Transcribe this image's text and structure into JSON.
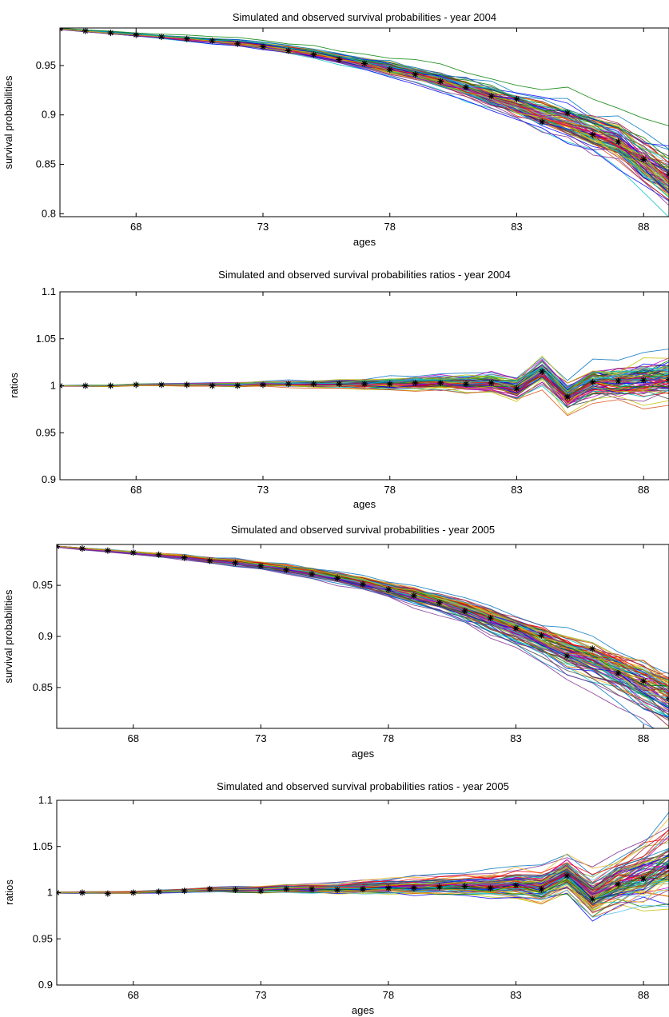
{
  "chart_data": [
    {
      "type": "line",
      "title": "Simulated and observed survival probabilities - year 2004",
      "xlabel": "ages",
      "ylabel": "survival probabilities",
      "xlim": [
        65,
        89
      ],
      "ylim": [
        0.797,
        0.988
      ],
      "xticks": [
        68,
        73,
        78,
        83,
        88
      ],
      "yticks": [
        0.8,
        0.85,
        0.9,
        0.95
      ],
      "yticklabels": [
        "0.8",
        "0.85",
        "0.9",
        "0.95"
      ],
      "grid": false,
      "x": [
        65,
        66,
        67,
        68,
        69,
        70,
        71,
        72,
        73,
        74,
        75,
        76,
        77,
        78,
        79,
        80,
        81,
        82,
        83,
        84,
        85,
        86,
        87,
        88,
        89
      ],
      "series": [
        {
          "role": "observed",
          "marker": "*",
          "color": "#000000",
          "values": [
            0.987,
            0.985,
            0.983,
            0.981,
            0.979,
            0.977,
            0.975,
            0.972,
            0.969,
            0.965,
            0.961,
            0.956,
            0.952,
            0.946,
            0.941,
            0.934,
            0.928,
            0.919,
            0.916,
            0.893,
            0.902,
            0.88,
            0.873,
            0.855,
            0.84
          ]
        },
        {
          "role": "simulated_band",
          "count_label": "",
          "center": [
            0.987,
            0.985,
            0.983,
            0.981,
            0.979,
            0.977,
            0.975,
            0.973,
            0.97,
            0.966,
            0.962,
            0.957,
            0.952,
            0.947,
            0.941,
            0.934,
            0.927,
            0.919,
            0.91,
            0.9,
            0.893,
            0.882,
            0.873,
            0.853,
            0.835
          ],
          "spread": [
            0.0005,
            0.0008,
            0.001,
            0.0012,
            0.0015,
            0.002,
            0.0025,
            0.003,
            0.0035,
            0.004,
            0.0045,
            0.005,
            0.006,
            0.007,
            0.008,
            0.009,
            0.01,
            0.012,
            0.014,
            0.016,
            0.018,
            0.02,
            0.022,
            0.026,
            0.03
          ]
        }
      ]
    },
    {
      "type": "line",
      "title": "Simulated and observed survival probabilities ratios - year 2004",
      "xlabel": "ages",
      "ylabel": "ratios",
      "xlim": [
        65,
        89
      ],
      "ylim": [
        0.9,
        1.1
      ],
      "xticks": [
        68,
        73,
        78,
        83,
        88
      ],
      "yticks": [
        0.9,
        0.95,
        1,
        1.05,
        1.1
      ],
      "yticklabels": [
        "0.9",
        "0.95",
        "1",
        "1.05",
        "1.1"
      ],
      "grid": false,
      "x": [
        65,
        66,
        67,
        68,
        69,
        70,
        71,
        72,
        73,
        74,
        75,
        76,
        77,
        78,
        79,
        80,
        81,
        82,
        83,
        84,
        85,
        86,
        87,
        88,
        89
      ],
      "series": [
        {
          "role": "observed",
          "marker": "*",
          "color": "#000000",
          "values": [
            1.0,
            1.0,
            1.0,
            1.001,
            1.001,
            1.001,
            1.0,
            1.0,
            1.001,
            1.002,
            1.002,
            1.002,
            1.002,
            1.002,
            1.003,
            1.003,
            1.002,
            1.003,
            0.997,
            1.015,
            0.988,
            1.004,
            1.005,
            1.006,
            1.007
          ]
        },
        {
          "role": "simulated_band",
          "count_label": "",
          "center": [
            1.0,
            1.0,
            1.0,
            1.001,
            1.001,
            1.001,
            1.001,
            1.001,
            1.002,
            1.002,
            1.002,
            1.002,
            1.002,
            1.002,
            1.003,
            1.003,
            1.002,
            1.003,
            0.997,
            1.015,
            0.988,
            1.003,
            1.003,
            1.005,
            1.006
          ],
          "spread": [
            0.0005,
            0.0008,
            0.001,
            0.001,
            0.0012,
            0.0015,
            0.002,
            0.0025,
            0.003,
            0.0035,
            0.004,
            0.005,
            0.006,
            0.007,
            0.008,
            0.009,
            0.01,
            0.012,
            0.014,
            0.016,
            0.018,
            0.02,
            0.022,
            0.025,
            0.028
          ]
        }
      ]
    },
    {
      "type": "line",
      "title": "Simulated and observed survival probabilities - year 2005",
      "xlabel": "ages",
      "ylabel": "survival probabilities",
      "xlim": [
        65,
        89
      ],
      "ylim": [
        0.81,
        0.99
      ],
      "xticks": [
        68,
        73,
        78,
        83,
        88
      ],
      "yticks": [
        0.85,
        0.9,
        0.95
      ],
      "yticklabels": [
        "0.85",
        "0.9",
        "0.95"
      ],
      "grid": false,
      "x": [
        65,
        66,
        67,
        68,
        69,
        70,
        71,
        72,
        73,
        74,
        75,
        76,
        77,
        78,
        79,
        80,
        81,
        82,
        83,
        84,
        85,
        86,
        87,
        88,
        89
      ],
      "series": [
        {
          "role": "observed",
          "marker": "*",
          "color": "#000000",
          "values": [
            0.988,
            0.986,
            0.984,
            0.982,
            0.98,
            0.977,
            0.974,
            0.972,
            0.969,
            0.965,
            0.961,
            0.957,
            0.951,
            0.946,
            0.94,
            0.933,
            0.925,
            0.918,
            0.908,
            0.901,
            0.881,
            0.888,
            0.864,
            0.856,
            0.839
          ]
        },
        {
          "role": "simulated_band",
          "count_label": "",
          "center": [
            0.988,
            0.986,
            0.984,
            0.982,
            0.98,
            0.978,
            0.975,
            0.973,
            0.97,
            0.967,
            0.963,
            0.958,
            0.953,
            0.947,
            0.941,
            0.934,
            0.926,
            0.917,
            0.907,
            0.897,
            0.886,
            0.876,
            0.866,
            0.853,
            0.84
          ],
          "spread": [
            0.0005,
            0.0008,
            0.001,
            0.0012,
            0.0015,
            0.002,
            0.0025,
            0.003,
            0.0035,
            0.004,
            0.0045,
            0.005,
            0.006,
            0.007,
            0.008,
            0.009,
            0.01,
            0.012,
            0.014,
            0.016,
            0.018,
            0.02,
            0.022,
            0.026,
            0.03
          ]
        }
      ]
    },
    {
      "type": "line",
      "title": "Simulated and observed survival probabilities ratios - year 2005",
      "xlabel": "ages",
      "ylabel": "ratios",
      "xlim": [
        65,
        89
      ],
      "ylim": [
        0.9,
        1.1
      ],
      "xticks": [
        68,
        73,
        78,
        83,
        88
      ],
      "yticks": [
        0.9,
        0.95,
        1,
        1.05,
        1.1
      ],
      "yticklabels": [
        "0.9",
        "0.95",
        "1",
        "1.05",
        "1.1"
      ],
      "grid": false,
      "x": [
        65,
        66,
        67,
        68,
        69,
        70,
        71,
        72,
        73,
        74,
        75,
        76,
        77,
        78,
        79,
        80,
        81,
        82,
        83,
        84,
        85,
        86,
        87,
        88,
        89
      ],
      "series": [
        {
          "role": "observed",
          "marker": "*",
          "color": "#000000",
          "values": [
            1.0,
            1.0,
            0.999,
            1.0,
            1.001,
            1.002,
            1.004,
            1.003,
            1.002,
            1.004,
            1.004,
            1.003,
            1.004,
            1.005,
            1.005,
            1.006,
            1.007,
            1.005,
            1.008,
            1.004,
            1.018,
            0.993,
            1.009,
            1.015,
            1.028
          ]
        },
        {
          "role": "simulated_band",
          "count_label": "",
          "center": [
            1.0,
            1.0,
            1.0,
            1.0,
            1.001,
            1.002,
            1.003,
            1.003,
            1.003,
            1.004,
            1.004,
            1.004,
            1.005,
            1.006,
            1.006,
            1.007,
            1.008,
            1.007,
            1.008,
            1.005,
            1.018,
            0.995,
            1.01,
            1.018,
            1.03
          ],
          "spread": [
            0.0005,
            0.0008,
            0.001,
            0.001,
            0.0012,
            0.0015,
            0.002,
            0.0025,
            0.003,
            0.0035,
            0.004,
            0.005,
            0.006,
            0.007,
            0.008,
            0.009,
            0.01,
            0.012,
            0.014,
            0.016,
            0.018,
            0.022,
            0.026,
            0.032,
            0.04
          ]
        }
      ]
    }
  ],
  "palette": [
    "#0000ff",
    "#008000",
    "#ff0000",
    "#00bfbf",
    "#bf00bf",
    "#bfbf00",
    "#3f3f3f",
    "#d95319",
    "#4dbeee",
    "#7e2f8e",
    "#77ac30",
    "#a2142f",
    "#edb120",
    "#0072bd"
  ]
}
